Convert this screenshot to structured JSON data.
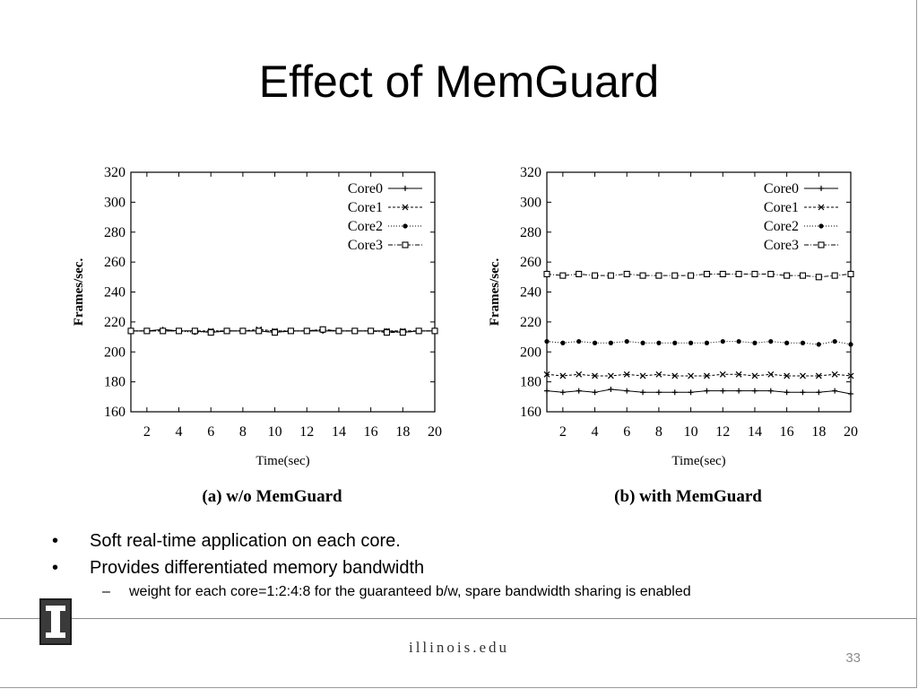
{
  "slide": {
    "title": "Effect of MemGuard",
    "bullets": [
      "Soft real-time application on each core.",
      "Provides differentiated memory bandwidth"
    ],
    "sub_bullets": [
      "weight for each core=1:2:4:8 for the guaranteed b/w, spare bandwidth sharing is enabled"
    ],
    "bullet_symbol": "•",
    "sub_bullet_symbol": "–",
    "footer_brand": "illinois.edu",
    "page_number": "33",
    "logo_icon": "illinois-block-i-logo"
  },
  "chart_data": [
    {
      "type": "line",
      "title": "",
      "caption": "(a)  w/o  MemGuard",
      "xlabel": "Time(sec)",
      "ylabel": "Frames/sec.",
      "xlim": [
        1,
        20
      ],
      "ylim": [
        160,
        320
      ],
      "xticks": [
        2,
        4,
        6,
        8,
        10,
        12,
        14,
        16,
        18,
        20
      ],
      "yticks": [
        160,
        180,
        200,
        220,
        240,
        260,
        280,
        300,
        320
      ],
      "legend": "top-right",
      "grid": false,
      "x": [
        1,
        2,
        3,
        4,
        5,
        6,
        7,
        8,
        9,
        10,
        11,
        12,
        13,
        14,
        15,
        16,
        17,
        18,
        19,
        20
      ],
      "series": [
        {
          "name": "Core0",
          "marker": "plus",
          "values": [
            214,
            214,
            215,
            214,
            214,
            213,
            214,
            214,
            214,
            213,
            214,
            214,
            214,
            214,
            214,
            214,
            214,
            213,
            214,
            214
          ]
        },
        {
          "name": "Core1",
          "marker": "x",
          "values": [
            214,
            214,
            214,
            214,
            214,
            214,
            214,
            214,
            215,
            214,
            214,
            214,
            215,
            214,
            214,
            214,
            214,
            214,
            214,
            214
          ]
        },
        {
          "name": "Core2",
          "marker": "dot",
          "values": [
            214,
            214,
            214,
            214,
            213,
            214,
            214,
            214,
            214,
            214,
            214,
            214,
            214,
            214,
            214,
            214,
            214,
            214,
            214,
            214
          ]
        },
        {
          "name": "Core3",
          "marker": "square",
          "values": [
            214,
            214,
            214,
            214,
            214,
            213,
            214,
            214,
            214,
            213,
            214,
            214,
            215,
            214,
            214,
            214,
            213,
            213,
            214,
            214
          ]
        }
      ]
    },
    {
      "type": "line",
      "title": "",
      "caption": "(b)  with  MemGuard",
      "xlabel": "Time(sec)",
      "ylabel": "Frames/sec.",
      "xlim": [
        1,
        20
      ],
      "ylim": [
        160,
        320
      ],
      "xticks": [
        2,
        4,
        6,
        8,
        10,
        12,
        14,
        16,
        18,
        20
      ],
      "yticks": [
        160,
        180,
        200,
        220,
        240,
        260,
        280,
        300,
        320
      ],
      "legend": "top-right",
      "grid": false,
      "x": [
        1,
        2,
        3,
        4,
        5,
        6,
        7,
        8,
        9,
        10,
        11,
        12,
        13,
        14,
        15,
        16,
        17,
        18,
        19,
        20
      ],
      "series": [
        {
          "name": "Core0",
          "marker": "plus",
          "values": [
            174,
            173,
            174,
            173,
            175,
            174,
            173,
            173,
            173,
            173,
            174,
            174,
            174,
            174,
            174,
            173,
            173,
            173,
            174,
            172
          ]
        },
        {
          "name": "Core1",
          "marker": "x",
          "values": [
            185,
            184,
            185,
            184,
            184,
            185,
            184,
            185,
            184,
            184,
            184,
            185,
            185,
            184,
            185,
            184,
            184,
            184,
            185,
            184
          ]
        },
        {
          "name": "Core2",
          "marker": "dot",
          "values": [
            207,
            206,
            207,
            206,
            206,
            207,
            206,
            206,
            206,
            206,
            206,
            207,
            207,
            206,
            207,
            206,
            206,
            205,
            207,
            205
          ]
        },
        {
          "name": "Core3",
          "marker": "square",
          "values": [
            252,
            251,
            252,
            251,
            251,
            252,
            251,
            251,
            251,
            251,
            252,
            252,
            252,
            252,
            252,
            251,
            251,
            250,
            251,
            252
          ]
        }
      ]
    }
  ]
}
